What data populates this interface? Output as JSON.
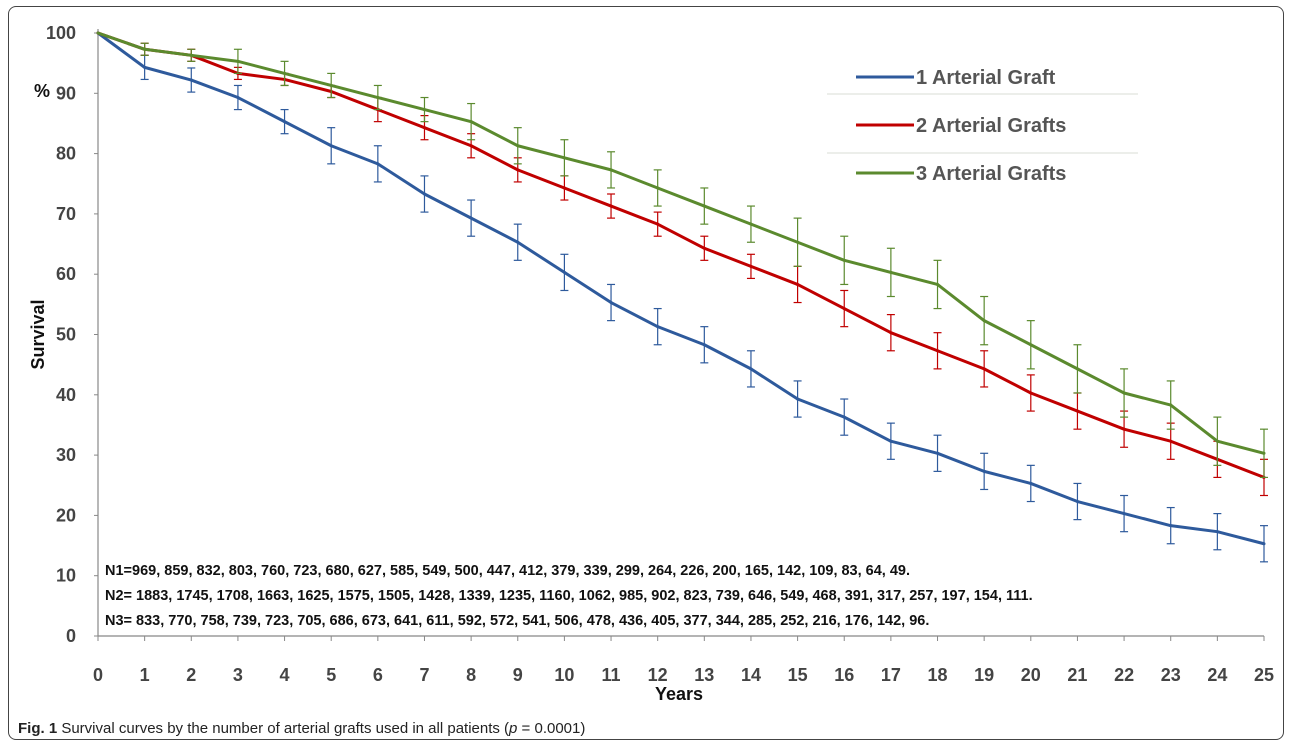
{
  "chart_data": {
    "type": "line",
    "xlabel": "Years",
    "ylabel": "Survival",
    "y_unit": "%",
    "xlim": [
      0,
      25
    ],
    "ylim": [
      0,
      100
    ],
    "x_ticks": [
      "0",
      "1",
      "2",
      "3",
      "4",
      "5",
      "6",
      "7",
      "8",
      "9",
      "10",
      "11",
      "12",
      "13",
      "14",
      "15",
      "16",
      "17",
      "18",
      "19",
      "20",
      "21",
      "22",
      "23",
      "24",
      "25"
    ],
    "y_ticks": [
      "0",
      "10",
      "20",
      "30",
      "40",
      "50",
      "60",
      "70",
      "80",
      "90",
      "100"
    ],
    "grid": false,
    "legend_position": "top-right",
    "x": [
      0,
      1,
      2,
      3,
      4,
      5,
      6,
      7,
      8,
      9,
      10,
      11,
      12,
      13,
      14,
      15,
      16,
      17,
      18,
      19,
      20,
      21,
      22,
      23,
      24,
      25
    ],
    "series": [
      {
        "name": "1 Arterial Graft",
        "color": "#2e5a9c",
        "values": [
          100,
          94.3,
          92.2,
          89.3,
          85.3,
          81.3,
          78.3,
          73.3,
          69.3,
          65.3,
          60.3,
          55.3,
          51.3,
          48.3,
          44.3,
          39.3,
          36.3,
          32.3,
          30.3,
          27.3,
          25.3,
          22.3,
          20.3,
          18.3,
          17.3,
          15.3
        ],
        "error": [
          0,
          2,
          2,
          2,
          2,
          3,
          3,
          3,
          3,
          3,
          3,
          3,
          3,
          3,
          3,
          3,
          3,
          3,
          3,
          3,
          3,
          3,
          3,
          3,
          3,
          3
        ]
      },
      {
        "name": "2 Arterial Grafts",
        "color": "#c00000",
        "values": [
          100,
          97.3,
          96.3,
          93.3,
          92.3,
          90.3,
          87.3,
          84.3,
          81.3,
          77.3,
          74.3,
          71.3,
          68.3,
          64.3,
          61.3,
          58.3,
          54.3,
          50.3,
          47.3,
          44.3,
          40.3,
          37.3,
          34.3,
          32.3,
          29.3,
          26.3
        ],
        "error": [
          0,
          1,
          1,
          1,
          1,
          1,
          2,
          2,
          2,
          2,
          2,
          2,
          2,
          2,
          2,
          3,
          3,
          3,
          3,
          3,
          3,
          3,
          3,
          3,
          3,
          3
        ]
      },
      {
        "name": "3 Arterial Grafts",
        "color": "#5b8a2e",
        "values": [
          100,
          97.3,
          96.3,
          95.3,
          93.3,
          91.3,
          89.3,
          87.3,
          85.3,
          81.3,
          79.3,
          77.3,
          74.3,
          71.3,
          68.3,
          65.3,
          62.3,
          60.3,
          58.3,
          52.3,
          48.3,
          44.3,
          40.3,
          38.3,
          32.3,
          30.3
        ],
        "error": [
          0,
          1,
          1,
          2,
          2,
          2,
          2,
          2,
          3,
          3,
          3,
          3,
          3,
          3,
          3,
          4,
          4,
          4,
          4,
          4,
          4,
          4,
          4,
          4,
          4,
          4
        ]
      }
    ],
    "annotations": [
      "N1=969, 859, 832, 803, 760, 723, 680, 627, 585, 549, 500, 447, 412, 379, 339, 299, 264, 226, 200, 165, 142, 109, 83, 64, 49.",
      "N2= 1883, 1745, 1708, 1663, 1625, 1575, 1505, 1428, 1339, 1235, 1160, 1062, 985, 902, 823, 739, 646, 549, 468, 391, 317, 257, 197, 154, 111.",
      "N3=  833, 770, 758, 739, 723, 705, 686, 673, 641, 611, 592, 572, 541, 506, 478, 436, 405, 377, 344, 285, 252, 216, 176, 142, 96."
    ]
  },
  "caption": {
    "label": "Fig. 1",
    "text": " Survival curves by the number of arterial grafts used in all patients (",
    "p_symbol": "p",
    "p_value": " = 0.0001)"
  }
}
